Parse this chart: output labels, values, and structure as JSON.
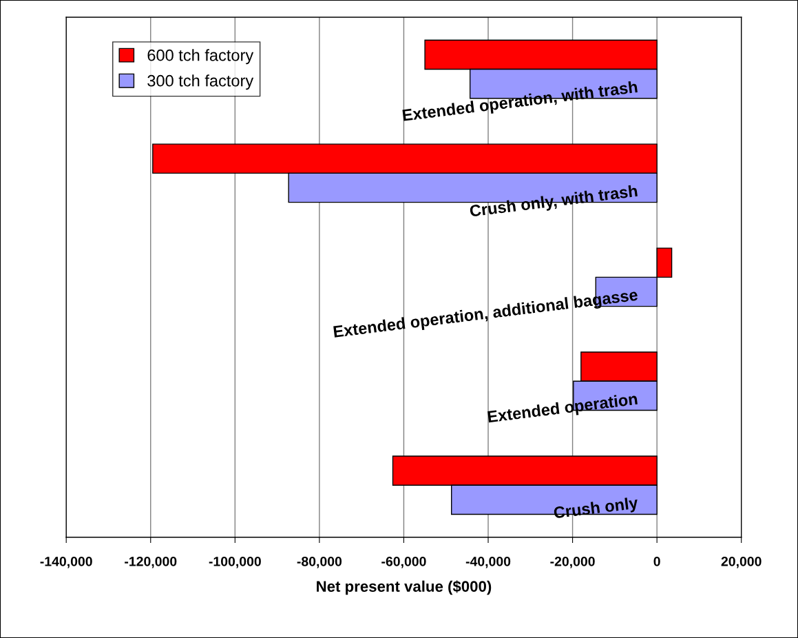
{
  "chart_data": {
    "type": "bar",
    "orientation": "horizontal",
    "categories": [
      "Extended operation, with trash",
      "Crush only, with trash",
      "Extended operation, additional bagasse",
      "Extended operation",
      "Crush only"
    ],
    "series": [
      {
        "name": "600 tch factory",
        "color": "#ff0000",
        "values": [
          -55000,
          -119500,
          3500,
          -18000,
          -62600
        ]
      },
      {
        "name": "300 tch factory",
        "color": "#9999ff",
        "values": [
          -44300,
          -87300,
          -14500,
          -19800,
          -48700
        ]
      }
    ],
    "xlabel": "Net present value ($000)",
    "xlim": [
      -140000,
      20000
    ],
    "xticks": [
      {
        "value": -140000,
        "label": "-140,000"
      },
      {
        "value": -120000,
        "label": "-120,000"
      },
      {
        "value": -100000,
        "label": "-100,000"
      },
      {
        "value": -80000,
        "label": "-80,000"
      },
      {
        "value": -60000,
        "label": "-60,000"
      },
      {
        "value": -40000,
        "label": "-40,000"
      },
      {
        "value": -20000,
        "label": "-20,000"
      },
      0,
      {
        "value": 20000,
        "label": "20,000"
      }
    ],
    "grid": "x",
    "legend": "top left",
    "tick_labels": "x"
  }
}
